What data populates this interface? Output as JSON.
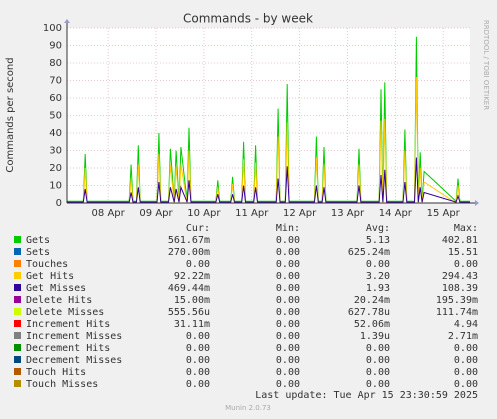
{
  "chart_data": {
    "type": "line",
    "title": "Commands - by week",
    "y_label": "Commands per second",
    "side_label": "RRDTOOL / TOBI OETIKER",
    "grid": true,
    "xlim": [
      0.14,
      8.56
    ],
    "xticks": [
      {
        "value": 1,
        "label": "08 Apr"
      },
      {
        "value": 2,
        "label": "09 Apr"
      },
      {
        "value": 3,
        "label": "10 Apr"
      },
      {
        "value": 4,
        "label": "11 Apr"
      },
      {
        "value": 5,
        "label": "12 Apr"
      },
      {
        "value": 6,
        "label": "13 Apr"
      },
      {
        "value": 7,
        "label": "14 Apr"
      },
      {
        "value": 8,
        "label": "15 Apr"
      }
    ],
    "ylim": [
      0,
      100
    ],
    "yticks": [
      0,
      10,
      20,
      30,
      40,
      50,
      60,
      70,
      80,
      90,
      100
    ],
    "x": [
      0.14,
      0.48,
      0.52,
      0.56,
      1.0,
      1.44,
      1.48,
      1.52,
      1.59,
      1.63,
      1.67,
      2.02,
      2.06,
      2.1,
      2.26,
      2.3,
      2.38,
      2.42,
      2.48,
      2.52,
      2.65,
      2.69,
      2.73,
      3.25,
      3.29,
      3.33,
      3.56,
      3.6,
      3.64,
      3.79,
      3.83,
      3.87,
      4.04,
      4.08,
      4.12,
      4.51,
      4.55,
      4.59,
      4.7,
      4.74,
      4.78,
      5.31,
      5.35,
      5.39,
      5.47,
      5.51,
      5.55,
      6.2,
      6.24,
      6.28,
      6.66,
      6.7,
      6.74,
      6.78,
      6.82,
      7.12,
      7.16,
      7.2,
      7.24,
      7.4,
      7.44,
      7.48,
      7.52,
      7.56,
      7.6,
      8.27,
      8.31,
      8.35,
      8.56
    ],
    "legend_headers": [
      "Cur:",
      "Min:",
      "Avg:",
      "Max:"
    ],
    "series": [
      {
        "name": "Gets",
        "color": "#00cc00",
        "cur": "561.67m",
        "min": "0.00",
        "avg": "5.13",
        "max": "402.81",
        "values": [
          1,
          1,
          28,
          1,
          1,
          1,
          22,
          1,
          1,
          33,
          1,
          1,
          40,
          1,
          1,
          31,
          1,
          30,
          1,
          32,
          1,
          43,
          1,
          1,
          13,
          1,
          1,
          15,
          1,
          1,
          35,
          1,
          1,
          33,
          1,
          1,
          54,
          1,
          1,
          68,
          1,
          1,
          38,
          1,
          1,
          32,
          1,
          1,
          31,
          1,
          1,
          65,
          1,
          69,
          1,
          1,
          1,
          42,
          1,
          1,
          95,
          1,
          29,
          1,
          18,
          1,
          14,
          1,
          1
        ]
      },
      {
        "name": "Sets",
        "color": "#0066b3",
        "cur": "270.00m",
        "min": "0.00",
        "avg": "625.24m",
        "max": "15.51"
      },
      {
        "name": "Touches",
        "color": "#ff8000",
        "cur": "0.00",
        "min": "0.00",
        "avg": "0.00",
        "max": "0.00"
      },
      {
        "name": "Get Hits",
        "color": "#ffcc00",
        "cur": "92.22m",
        "min": "0.00",
        "avg": "3.20",
        "max": "294.43",
        "values": [
          0,
          0,
          20,
          0,
          0,
          0,
          14,
          0,
          0,
          22,
          0,
          0,
          28,
          0,
          0,
          22,
          0,
          21,
          0,
          22,
          0,
          30,
          0,
          0,
          9,
          0,
          0,
          11,
          0,
          0,
          25,
          0,
          0,
          23,
          0,
          0,
          38,
          0,
          0,
          46,
          0,
          0,
          26,
          0,
          0,
          22,
          0,
          0,
          22,
          0,
          0,
          47,
          0,
          48,
          0,
          0,
          0,
          30,
          0,
          0,
          72,
          0,
          20,
          0,
          12,
          0,
          10,
          0,
          0
        ]
      },
      {
        "name": "Get Misses",
        "color": "#330099",
        "cur": "469.44m",
        "min": "0.00",
        "avg": "1.93",
        "max": "108.39",
        "values": [
          0.5,
          0.5,
          8,
          0.5,
          0.5,
          0.5,
          6,
          0.5,
          0.5,
          9,
          0.5,
          0.5,
          12,
          0.5,
          0.5,
          9,
          0.5,
          8,
          0.5,
          9,
          0.5,
          13,
          0.5,
          0.5,
          5,
          0.5,
          0.5,
          5,
          0.5,
          0.5,
          10,
          0.5,
          0.5,
          9,
          0.5,
          0.5,
          14,
          0.5,
          0.5,
          21,
          0.5,
          0.5,
          10,
          0.5,
          0.5,
          9,
          0.5,
          0.5,
          10,
          0.5,
          0.5,
          16,
          0.5,
          19,
          0.5,
          0.5,
          0.5,
          12,
          0.5,
          0.5,
          26,
          0.5,
          9,
          0.5,
          6,
          0.5,
          4,
          0.5,
          0.5
        ]
      },
      {
        "name": "Delete Hits",
        "color": "#990099",
        "cur": "15.00m",
        "min": "0.00",
        "avg": "20.24m",
        "max": "195.39m"
      },
      {
        "name": "Delete Misses",
        "color": "#ccff00",
        "cur": "555.56u",
        "min": "0.00",
        "avg": "627.78u",
        "max": "111.74m"
      },
      {
        "name": "Increment Hits",
        "color": "#ff0000",
        "cur": "31.11m",
        "min": "0.00",
        "avg": "52.06m",
        "max": "4.94"
      },
      {
        "name": "Increment Misses",
        "color": "#808080",
        "cur": "0.00",
        "min": "0.00",
        "avg": "1.39u",
        "max": "2.71m"
      },
      {
        "name": "Decrement Hits",
        "color": "#008f00",
        "cur": "0.00",
        "min": "0.00",
        "avg": "0.00",
        "max": "0.00"
      },
      {
        "name": "Decrement Misses",
        "color": "#00487d",
        "cur": "0.00",
        "min": "0.00",
        "avg": "0.00",
        "max": "0.00"
      },
      {
        "name": "Touch Hits",
        "color": "#b35a00",
        "cur": "0.00",
        "min": "0.00",
        "avg": "0.00",
        "max": "0.00"
      },
      {
        "name": "Touch Misses",
        "color": "#b38f00",
        "cur": "0.00",
        "min": "0.00",
        "avg": "0.00",
        "max": "0.00"
      }
    ],
    "last_update": "Last update: Tue Apr 15 23:30:59 2025",
    "footer": "Munin 2.0.73"
  }
}
